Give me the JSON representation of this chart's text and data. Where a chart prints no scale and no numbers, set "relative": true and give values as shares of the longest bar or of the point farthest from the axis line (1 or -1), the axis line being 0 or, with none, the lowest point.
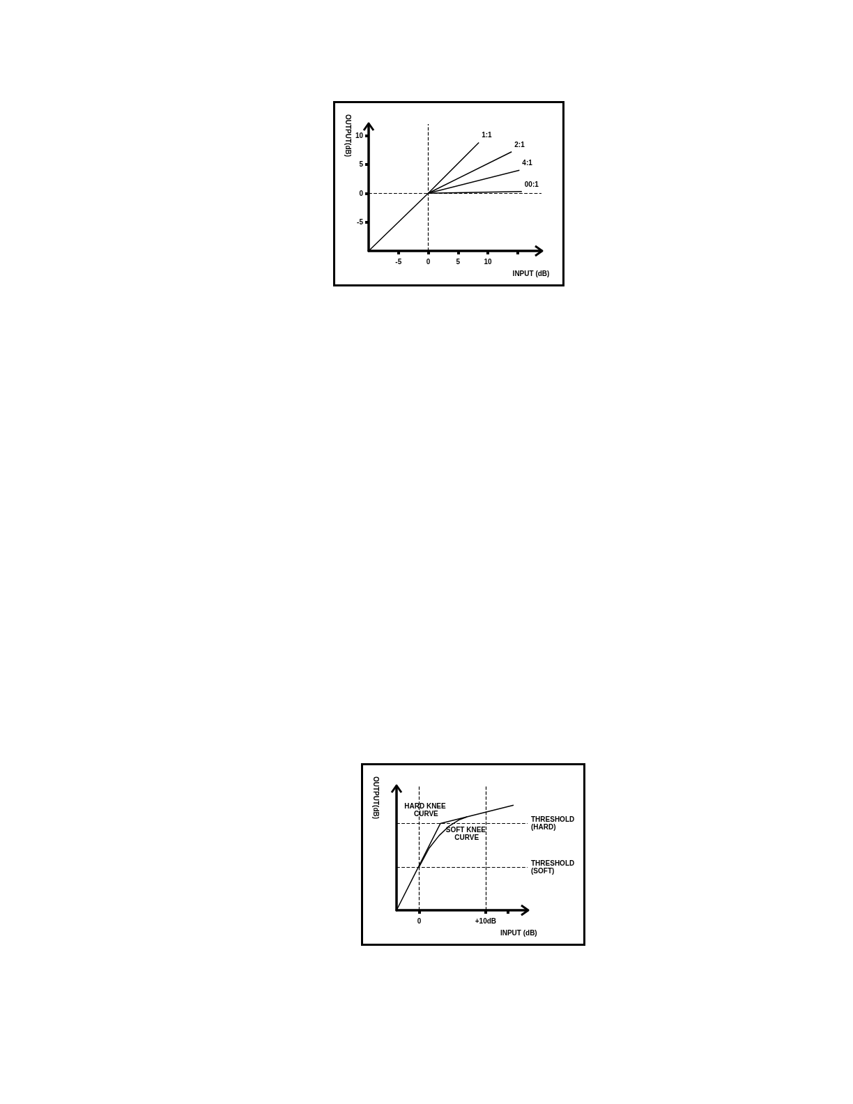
{
  "chart_data": [
    {
      "type": "line",
      "xlabel": "INPUT (dB)",
      "ylabel": "OUTPUT(dB)",
      "xlim": [
        -10,
        19
      ],
      "ylim": [
        -10,
        12
      ],
      "xticks": [
        -5,
        0,
        5,
        10,
        {
          "value": 15,
          "label": null
        }
      ],
      "yticks": [
        -5,
        0,
        5,
        10
      ],
      "line_style": "solid",
      "series": [
        {
          "name": "1:1",
          "color": "#000000",
          "x": [
            -10,
            0,
            8.5
          ],
          "values": [
            -10,
            0,
            8.8
          ]
        },
        {
          "name": "2:1",
          "color": "#000000",
          "x": [
            0,
            14
          ],
          "values": [
            0,
            7.2
          ]
        },
        {
          "name": "4:1",
          "color": "#000000",
          "x": [
            0,
            15.3
          ],
          "values": [
            0,
            4
          ]
        },
        {
          "name": "00:1",
          "color": "#000000",
          "x": [
            0,
            15.7
          ],
          "values": [
            0,
            0.3
          ]
        }
      ],
      "ref_lines": [
        {
          "axis": "x",
          "value": 0,
          "line_style": "dashed",
          "color": "#000000"
        },
        {
          "axis": "y",
          "value": 0,
          "line_style": "dashed",
          "color": "#000000"
        }
      ]
    },
    {
      "type": "line",
      "xlabel": "INPUT (dB)",
      "ylabel": "OUTPUT(dB)",
      "relative": true,
      "xlim": [
        -3.4,
        16.3
      ],
      "xticks": [
        0,
        {
          "value": 10,
          "label": "+10dB"
        },
        {
          "value": 13.3,
          "label": null
        }
      ],
      "line_style": "solid",
      "series": [
        {
          "name": "HARD KNEE CURVE",
          "color": "#000000",
          "x": [
            -3.4,
            3.2,
            14.2
          ],
          "values": [
            0,
            0.826,
            1
          ]
        },
        {
          "name": "SOFT KNEE CURVE",
          "color": "#000000",
          "x": [
            0,
            1.5,
            3,
            4.5,
            6,
            7.2
          ],
          "values": [
            0.413,
            0.59,
            0.71,
            0.8,
            0.86,
            0.888
          ]
        }
      ],
      "ref_lines": [
        {
          "axis": "y",
          "value": 0.826,
          "label": "THRESHOLD (HARD)",
          "line_style": "dashed",
          "color": "#000000"
        },
        {
          "axis": "y",
          "value": 0.413,
          "label": "THRESHOLD (SOFT)",
          "line_style": "dashed",
          "color": "#000000"
        },
        {
          "axis": "x",
          "value": 0,
          "line_style": "dashed",
          "color": "#000000"
        },
        {
          "axis": "x",
          "value": 10,
          "line_style": "dashed",
          "color": "#000000"
        }
      ]
    }
  ]
}
